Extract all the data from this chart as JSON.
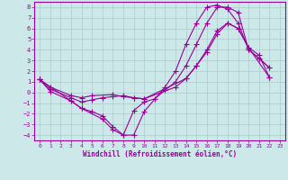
{
  "xlabel": "Windchill (Refroidissement éolien,°C)",
  "bg_color": "#cce8e8",
  "grid_color": "#aacccc",
  "line_color": "#990099",
  "xlim": [
    -0.5,
    23.5
  ],
  "ylim": [
    -4.5,
    8.5
  ],
  "xticks": [
    0,
    1,
    2,
    3,
    4,
    5,
    6,
    7,
    8,
    9,
    10,
    11,
    12,
    13,
    14,
    15,
    16,
    17,
    18,
    19,
    20,
    21,
    22,
    23
  ],
  "yticks": [
    -4,
    -3,
    -2,
    -1,
    0,
    1,
    2,
    3,
    4,
    5,
    6,
    7,
    8
  ],
  "lines": [
    {
      "x": [
        0,
        1,
        3,
        4,
        5,
        7,
        8,
        9,
        10,
        14,
        15,
        16,
        17,
        18,
        19,
        20,
        22
      ],
      "y": [
        1.2,
        0.5,
        -0.3,
        -0.5,
        -0.3,
        -0.2,
        -0.4,
        -0.5,
        -0.6,
        1.3,
        2.5,
        3.8,
        5.5,
        6.5,
        6.0,
        4.2,
        1.4
      ]
    },
    {
      "x": [
        0,
        1,
        3,
        4,
        5,
        6,
        7,
        8,
        9,
        10,
        13,
        14,
        15,
        16,
        17,
        18,
        19,
        20,
        21,
        22
      ],
      "y": [
        1.2,
        0.3,
        -0.5,
        -0.9,
        -0.7,
        -0.5,
        -0.4,
        -0.3,
        -0.5,
        -0.6,
        0.5,
        1.3,
        2.5,
        4.0,
        5.8,
        6.5,
        6.0,
        4.2,
        3.5,
        1.4
      ]
    },
    {
      "x": [
        0,
        1,
        3,
        4,
        5,
        6,
        7,
        8,
        9,
        10,
        11,
        12,
        13,
        14,
        15,
        16,
        17,
        18,
        19,
        20,
        21,
        22
      ],
      "y": [
        1.2,
        0.1,
        -0.8,
        -1.5,
        -1.8,
        -2.2,
        -3.2,
        -4.0,
        -1.7,
        -0.9,
        -0.6,
        0.2,
        1.0,
        2.5,
        4.5,
        6.5,
        8.0,
        8.0,
        7.5,
        4.0,
        3.2,
        2.3
      ]
    },
    {
      "x": [
        0,
        3,
        4,
        6,
        7,
        8,
        9,
        10,
        12,
        13,
        14,
        15,
        16,
        17,
        18,
        19,
        20,
        21,
        22
      ],
      "y": [
        1.2,
        -0.8,
        -1.5,
        -2.5,
        -3.5,
        -4.0,
        -4.0,
        -1.8,
        0.5,
        2.0,
        4.5,
        6.5,
        8.0,
        8.2,
        7.8,
        6.5,
        4.0,
        3.2,
        2.3
      ]
    }
  ]
}
